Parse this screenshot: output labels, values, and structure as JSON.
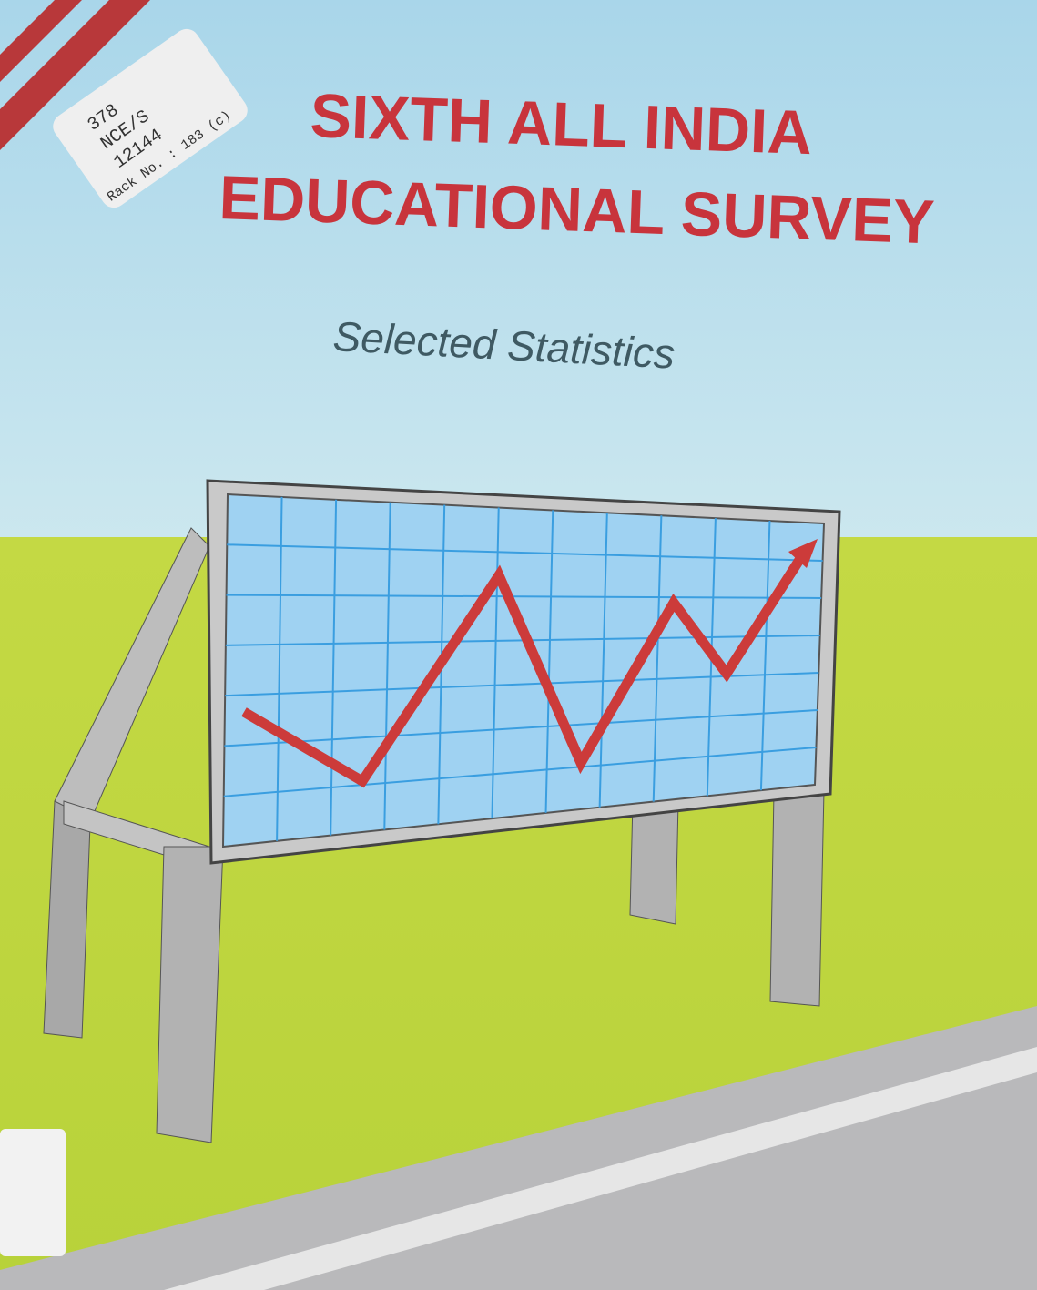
{
  "cover": {
    "title_lines": [
      "SIXTH ALL INDIA",
      "EDUCATIONAL SURVEY"
    ],
    "subtitle": "Selected Statistics"
  },
  "library_label": {
    "lines": [
      "378",
      "NCE/S",
      "12144"
    ],
    "rack": "Rack No. : 183 (c)"
  }
}
